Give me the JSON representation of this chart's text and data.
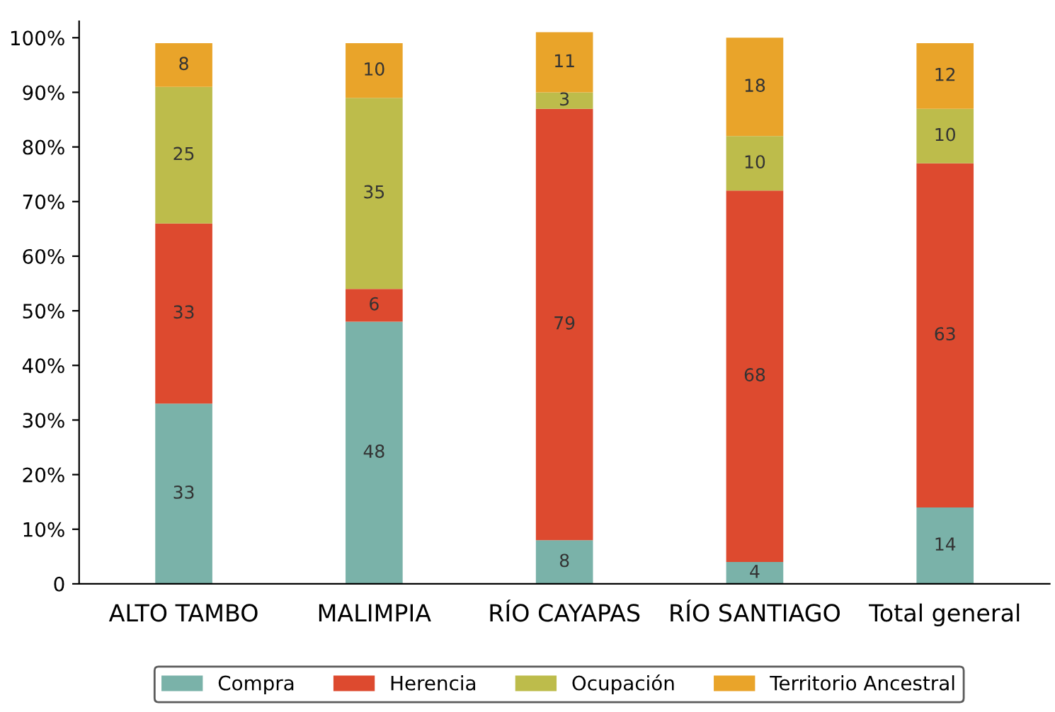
{
  "chart_data": {
    "type": "bar",
    "stacked": true,
    "categories": [
      "ALTO TAMBO",
      "MALIMPIA",
      "RÍO CAYAPAS",
      "RÍO SANTIAGO",
      "Total general"
    ],
    "series": [
      {
        "name": "Compra",
        "color": "#7ab2a9",
        "values": [
          33,
          48,
          8,
          4,
          14
        ]
      },
      {
        "name": "Herencia",
        "color": "#dd4a2f",
        "values": [
          33,
          6,
          79,
          68,
          63
        ]
      },
      {
        "name": "Ocupación",
        "color": "#bdbc4b",
        "values": [
          25,
          35,
          3,
          10,
          10
        ]
      },
      {
        "name": "Territorio Ancestral",
        "color": "#e9a42a",
        "values": [
          8,
          10,
          11,
          18,
          12
        ]
      }
    ],
    "ylim": [
      0,
      103
    ],
    "yticks": [
      0,
      {
        "value": 10,
        "label": "10%"
      },
      {
        "value": 20,
        "label": "20%"
      },
      {
        "value": 30,
        "label": "30%"
      },
      {
        "value": 40,
        "label": "40%"
      },
      {
        "value": 50,
        "label": "50%"
      },
      {
        "value": 60,
        "label": "60%"
      },
      {
        "value": 70,
        "label": "70%"
      },
      {
        "value": 80,
        "label": "80%"
      },
      {
        "value": 90,
        "label": "90%"
      },
      {
        "value": 100,
        "label": "100%"
      }
    ],
    "data_labels": true,
    "grid": false,
    "legend": "bottom"
  }
}
